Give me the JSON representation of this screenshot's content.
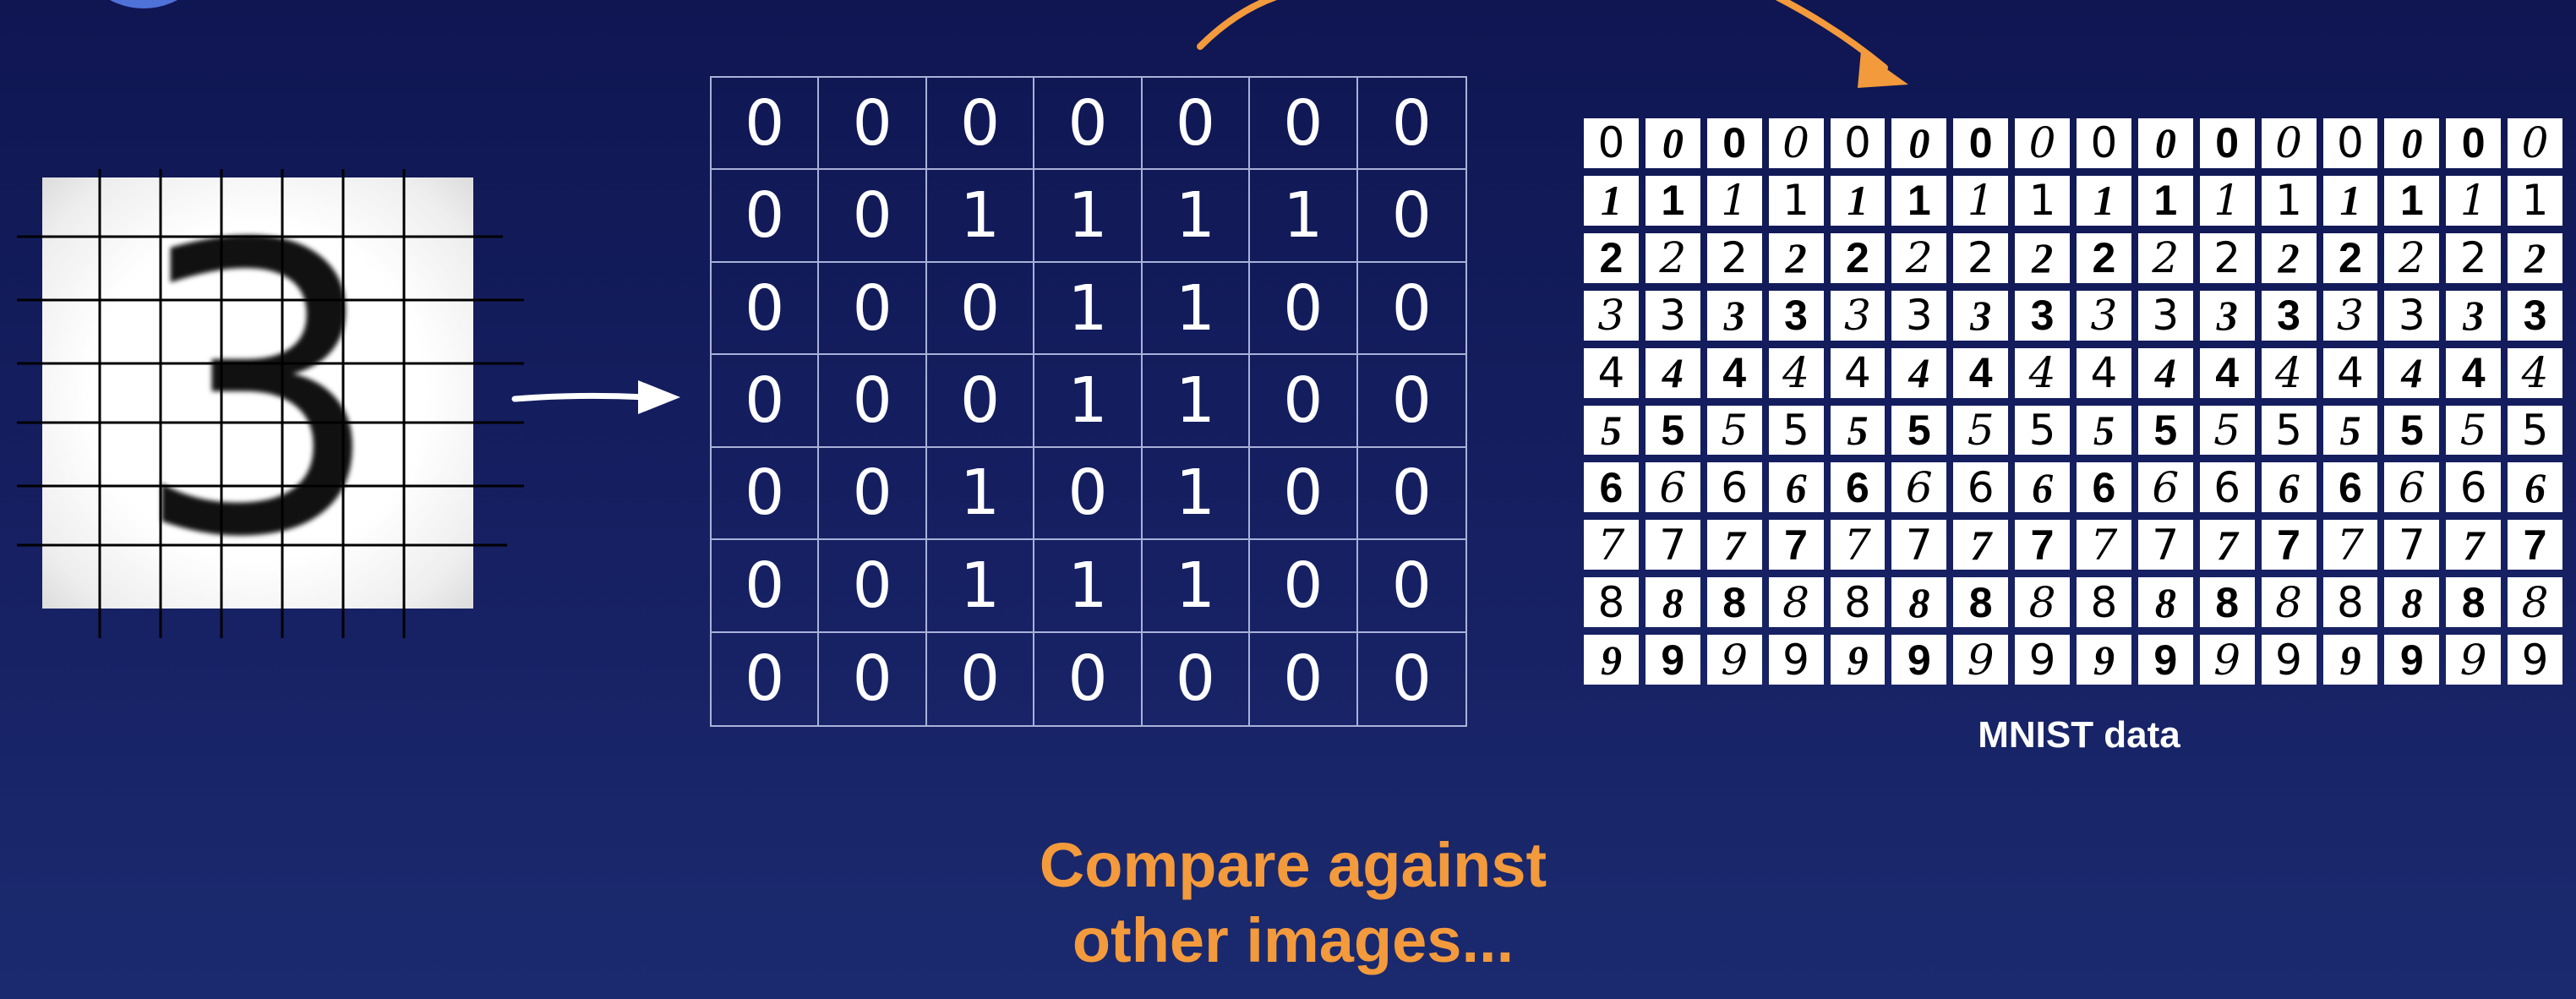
{
  "matrix": {
    "rows": [
      [
        "0",
        "0",
        "0",
        "0",
        "0",
        "0",
        "0"
      ],
      [
        "0",
        "0",
        "1",
        "1",
        "1",
        "1",
        "0"
      ],
      [
        "0",
        "0",
        "0",
        "1",
        "1",
        "0",
        "0"
      ],
      [
        "0",
        "0",
        "0",
        "1",
        "1",
        "0",
        "0"
      ],
      [
        "0",
        "0",
        "1",
        "0",
        "1",
        "0",
        "0"
      ],
      [
        "0",
        "0",
        "1",
        "1",
        "1",
        "0",
        "0"
      ],
      [
        "0",
        "0",
        "0",
        "0",
        "0",
        "0",
        "0"
      ]
    ]
  },
  "input_image": {
    "digit": "3"
  },
  "mnist": {
    "caption": "MNIST data",
    "rows": [
      [
        "0",
        "0",
        "0",
        "0",
        "0",
        "0",
        "0",
        "0",
        "0",
        "0",
        "0",
        "0",
        "0",
        "0",
        "0",
        "0"
      ],
      [
        "1",
        "1",
        "1",
        "1",
        "1",
        "1",
        "1",
        "1",
        "1",
        "1",
        "1",
        "1",
        "1",
        "1",
        "1",
        "1"
      ],
      [
        "2",
        "2",
        "2",
        "2",
        "2",
        "2",
        "2",
        "2",
        "2",
        "2",
        "2",
        "2",
        "2",
        "2",
        "2",
        "2"
      ],
      [
        "3",
        "3",
        "3",
        "3",
        "3",
        "3",
        "3",
        "3",
        "3",
        "3",
        "3",
        "3",
        "3",
        "3",
        "3",
        "3"
      ],
      [
        "4",
        "4",
        "4",
        "4",
        "4",
        "4",
        "4",
        "4",
        "4",
        "4",
        "4",
        "4",
        "4",
        "4",
        "4",
        "4"
      ],
      [
        "5",
        "5",
        "5",
        "5",
        "5",
        "5",
        "5",
        "5",
        "5",
        "5",
        "5",
        "5",
        "5",
        "5",
        "5",
        "5"
      ],
      [
        "6",
        "6",
        "6",
        "6",
        "6",
        "6",
        "6",
        "6",
        "6",
        "6",
        "6",
        "6",
        "6",
        "6",
        "6",
        "6"
      ],
      [
        "7",
        "7",
        "7",
        "7",
        "7",
        "7",
        "7",
        "7",
        "7",
        "7",
        "7",
        "7",
        "7",
        "7",
        "7",
        "7"
      ],
      [
        "8",
        "8",
        "8",
        "8",
        "8",
        "8",
        "8",
        "8",
        "8",
        "8",
        "8",
        "8",
        "8",
        "8",
        "8",
        "8"
      ],
      [
        "9",
        "9",
        "9",
        "9",
        "9",
        "9",
        "9",
        "9",
        "9",
        "9",
        "9",
        "9",
        "9",
        "9",
        "9",
        "9"
      ]
    ]
  },
  "headline": {
    "line1": "Compare against",
    "line2": "other images..."
  },
  "colors": {
    "background": "#131b5a",
    "accent": "#f39a3c",
    "text": "#ffffff",
    "logo": "#4f72d9"
  },
  "icons": {
    "right_arrow": "arrow-right-icon",
    "curved_arrow": "curved-arrow-icon"
  }
}
